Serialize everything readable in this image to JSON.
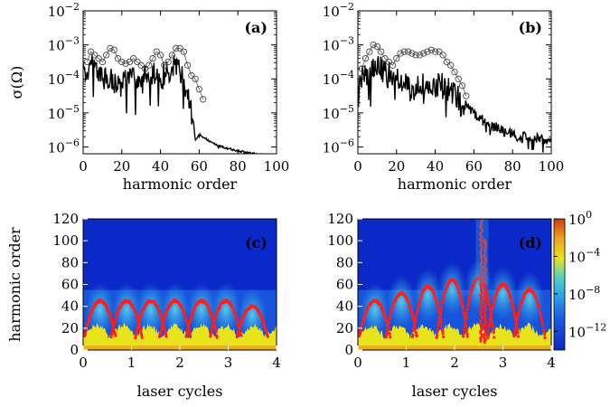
{
  "figure": {
    "colorbar": {
      "ticks": [
        {
          "base": "10",
          "exp": "0",
          "value": 0
        },
        {
          "base": "10",
          "exp": "−4",
          "value": -4
        },
        {
          "base": "10",
          "exp": "−8",
          "value": -8
        },
        {
          "base": "10",
          "exp": "−12",
          "value": -12
        }
      ],
      "range_log10": [
        -14,
        0
      ],
      "colormap": [
        "#0b28c8",
        "#1a5ee0",
        "#2aa6e8",
        "#4fd2c0",
        "#e8e41c",
        "#f0a020",
        "#d03a10"
      ]
    },
    "overlay_color": "#ff1e1e",
    "line_color": "#000000"
  },
  "chart_data": [
    {
      "panel": "(a)",
      "type": "line",
      "xlabel": "harmonic order",
      "ylabel": "σ(Ω)",
      "xlim": [
        0,
        100
      ],
      "ylim_log10": [
        -6.2,
        -2
      ],
      "xticks": [
        "0",
        "20",
        "40",
        "60",
        "80",
        "100"
      ],
      "yticks": [
        {
          "base": "10",
          "exp": "−2",
          "value": -2
        },
        {
          "base": "10",
          "exp": "−3",
          "value": -3
        },
        {
          "base": "10",
          "exp": "−4",
          "value": -4
        },
        {
          "base": "10",
          "exp": "−5",
          "value": -5
        },
        {
          "base": "10",
          "exp": "−6",
          "value": -6
        }
      ],
      "series": [
        {
          "name": "spectrum (log10 envelope)",
          "style": "line",
          "x": [
            0,
            5,
            10,
            15,
            20,
            25,
            30,
            35,
            40,
            45,
            50,
            53,
            55,
            57,
            58,
            60,
            65,
            70,
            80,
            90,
            100
          ],
          "values": [
            -3.6,
            -3.3,
            -3.7,
            -3.8,
            -3.9,
            -3.7,
            -3.8,
            -3.5,
            -3.7,
            -3.5,
            -3.4,
            -4.0,
            -4.3,
            -5.2,
            -5.8,
            -5.6,
            -5.8,
            -5.95,
            -6.1,
            -6.2,
            -6.25
          ]
        },
        {
          "name": "open circles",
          "style": "marker",
          "x": [
            2,
            4,
            6,
            8,
            10,
            12,
            14,
            16,
            18,
            20,
            22,
            24,
            26,
            28,
            30,
            32,
            34,
            36,
            38,
            40,
            42,
            44,
            46,
            48,
            50,
            52,
            54,
            56,
            58,
            60,
            62
          ],
          "values": [
            -3.5,
            -3.2,
            -3.3,
            -3.4,
            -3.5,
            -3.3,
            -3.1,
            -3.15,
            -3.4,
            -3.5,
            -3.55,
            -3.5,
            -3.4,
            -3.5,
            -3.6,
            -3.7,
            -3.6,
            -3.4,
            -3.2,
            -3.3,
            -3.6,
            -3.5,
            -3.3,
            -3.1,
            -3.1,
            -3.2,
            -3.6,
            -3.9,
            -4.0,
            -4.3,
            -4.6
          ]
        }
      ]
    },
    {
      "panel": "(b)",
      "type": "line",
      "xlabel": "harmonic order",
      "ylabel": "",
      "xlim": [
        0,
        100
      ],
      "ylim_log10": [
        -6.2,
        -2
      ],
      "xticks": [
        "0",
        "20",
        "40",
        "60",
        "80",
        "100"
      ],
      "yticks": [
        {
          "base": "10",
          "exp": "−2",
          "value": -2
        },
        {
          "base": "10",
          "exp": "−3",
          "value": -3
        },
        {
          "base": "10",
          "exp": "−4",
          "value": -4
        },
        {
          "base": "10",
          "exp": "−5",
          "value": -5
        },
        {
          "base": "10",
          "exp": "−6",
          "value": -6
        }
      ],
      "series": [
        {
          "name": "spectrum (log10 envelope)",
          "style": "line",
          "x": [
            0,
            5,
            10,
            15,
            20,
            25,
            30,
            35,
            40,
            45,
            50,
            55,
            60,
            65,
            70,
            75,
            80,
            85,
            90,
            95,
            100
          ],
          "values": [
            -3.8,
            -3.6,
            -3.3,
            -3.6,
            -3.8,
            -3.9,
            -4.0,
            -3.9,
            -3.9,
            -4.0,
            -4.2,
            -4.6,
            -4.9,
            -5.1,
            -5.3,
            -5.4,
            -5.5,
            -5.6,
            -5.6,
            -5.65,
            -5.7
          ]
        },
        {
          "name": "open circles",
          "style": "marker",
          "x": [
            2,
            4,
            6,
            8,
            10,
            12,
            14,
            16,
            18,
            20,
            22,
            24,
            26,
            28,
            30,
            32,
            34,
            36,
            38,
            40,
            42,
            44,
            46,
            48,
            50,
            52,
            54,
            56
          ],
          "values": [
            -3.7,
            -3.4,
            -3.2,
            -3.0,
            -3.05,
            -3.2,
            -3.4,
            -3.5,
            -3.6,
            -3.4,
            -3.25,
            -3.2,
            -3.2,
            -3.25,
            -3.3,
            -3.3,
            -3.25,
            -3.2,
            -3.15,
            -3.2,
            -3.2,
            -3.3,
            -3.5,
            -3.6,
            -3.8,
            -4.0,
            -4.2,
            -4.5
          ]
        }
      ]
    },
    {
      "panel": "(c)",
      "type": "heatmap",
      "xlabel": "laser cycles",
      "ylabel": "harmonic order",
      "xlim": [
        0,
        4
      ],
      "ylim": [
        0,
        120
      ],
      "xticks": [
        "0",
        "1",
        "2",
        "3",
        "4"
      ],
      "yticks": [
        "0",
        "20",
        "40",
        "60",
        "80",
        "100",
        "120"
      ],
      "arc_peak_times": [
        0.35,
        0.9,
        1.4,
        1.9,
        2.45,
        2.95,
        3.5
      ],
      "arc_peak_orders": [
        45,
        45,
        45,
        45,
        45,
        45,
        40
      ],
      "overlay": "classical trajectory energies (red dots)"
    },
    {
      "panel": "(d)",
      "type": "heatmap",
      "xlabel": "laser cycles",
      "ylabel": "",
      "xlim": [
        0,
        4
      ],
      "ylim": [
        0,
        120
      ],
      "xticks": [
        "0",
        "1",
        "2",
        "3",
        "4"
      ],
      "yticks": [
        "0",
        "20",
        "40",
        "60",
        "80",
        "100",
        "120"
      ],
      "arc_peak_times": [
        0.35,
        0.9,
        1.45,
        1.95,
        2.5,
        3.0,
        3.55
      ],
      "arc_peak_orders": [
        45,
        52,
        58,
        64,
        66,
        60,
        55
      ],
      "spike_time": 2.55,
      "spike_max_order": 120,
      "overlay": "classical trajectory energies (red dots)"
    }
  ]
}
